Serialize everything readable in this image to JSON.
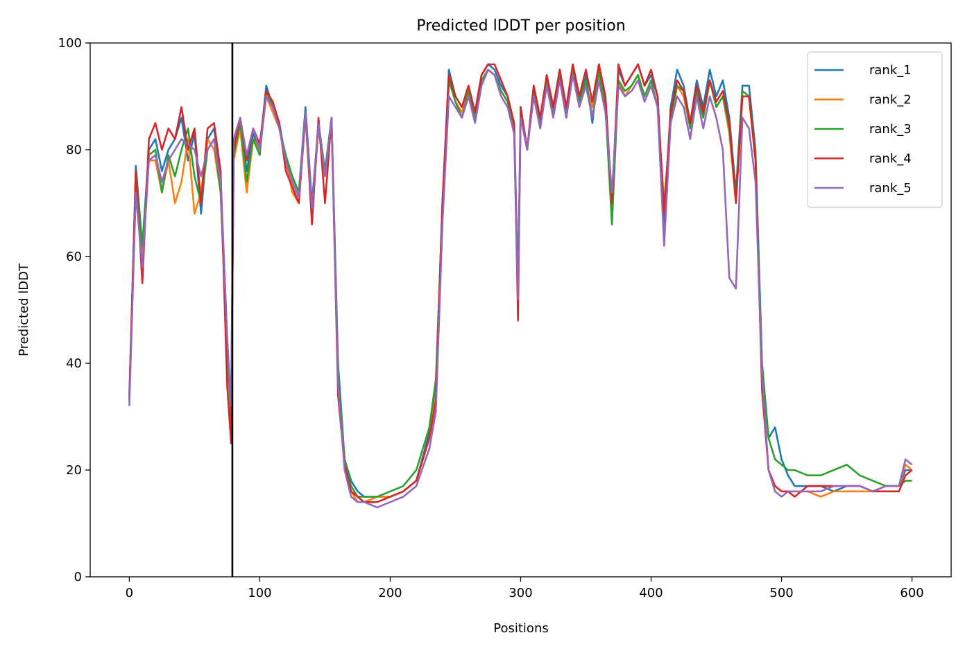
{
  "chart_data": {
    "type": "line",
    "title": "Predicted lDDT per position",
    "xlabel": "Positions",
    "ylabel": "Predicted lDDT",
    "xlim": [
      -30,
      630
    ],
    "ylim": [
      0,
      100
    ],
    "xticks": [
      0,
      100,
      200,
      300,
      400,
      500,
      600
    ],
    "yticks": [
      0,
      20,
      40,
      60,
      80,
      100
    ],
    "grid": false,
    "legend_position": "top-right",
    "vline_x": 79,
    "x": [
      0,
      5,
      10,
      15,
      20,
      25,
      30,
      35,
      40,
      45,
      50,
      55,
      60,
      65,
      70,
      75,
      78,
      80,
      85,
      90,
      95,
      100,
      105,
      110,
      115,
      120,
      125,
      130,
      135,
      140,
      145,
      150,
      155,
      160,
      165,
      170,
      175,
      180,
      190,
      200,
      210,
      220,
      230,
      235,
      240,
      245,
      250,
      255,
      260,
      265,
      270,
      275,
      280,
      285,
      290,
      295,
      298,
      300,
      305,
      310,
      315,
      320,
      325,
      330,
      335,
      340,
      345,
      350,
      355,
      360,
      365,
      370,
      375,
      380,
      385,
      390,
      395,
      400,
      405,
      410,
      415,
      420,
      425,
      430,
      435,
      440,
      445,
      450,
      455,
      460,
      465,
      470,
      475,
      480,
      485,
      490,
      495,
      500,
      505,
      510,
      520,
      530,
      540,
      550,
      560,
      570,
      580,
      590,
      595,
      600
    ],
    "series": [
      {
        "name": "rank_1",
        "color": "#1f77b4",
        "values": [
          33,
          77,
          62,
          80,
          82,
          76,
          80,
          82,
          86,
          78,
          83,
          68,
          82,
          84,
          75,
          45,
          30,
          80,
          86,
          76,
          83,
          80,
          92,
          88,
          85,
          78,
          75,
          72,
          88,
          70,
          85,
          76,
          86,
          40,
          22,
          18,
          16,
          15,
          15,
          15,
          16,
          18,
          27,
          35,
          70,
          95,
          90,
          88,
          92,
          87,
          94,
          96,
          95,
          92,
          90,
          85,
          55,
          88,
          80,
          92,
          85,
          94,
          88,
          95,
          87,
          96,
          90,
          94,
          85,
          96,
          90,
          70,
          95,
          92,
          94,
          96,
          92,
          94,
          90,
          66,
          88,
          95,
          92,
          85,
          93,
          88,
          95,
          90,
          93,
          86,
          72,
          92,
          92,
          80,
          40,
          26,
          28,
          22,
          19,
          17,
          17,
          17,
          16,
          17,
          17,
          16,
          17,
          17,
          20,
          20
        ]
      },
      {
        "name": "rank_2",
        "color": "#ff7f0e",
        "values": [
          33,
          75,
          60,
          78,
          78,
          72,
          78,
          70,
          74,
          82,
          68,
          72,
          82,
          80,
          72,
          42,
          30,
          78,
          84,
          72,
          82,
          80,
          90,
          87,
          84,
          78,
          72,
          70,
          86,
          68,
          84,
          76,
          85,
          37,
          22,
          16,
          14,
          14,
          15,
          15,
          16,
          18,
          26,
          34,
          68,
          93,
          89,
          87,
          91,
          86,
          93,
          95,
          94,
          91,
          89,
          84,
          54,
          87,
          80,
          90,
          84,
          93,
          87,
          94,
          86,
          95,
          89,
          92,
          88,
          94,
          88,
          68,
          93,
          90,
          92,
          94,
          90,
          93,
          88,
          70,
          85,
          92,
          90,
          84,
          91,
          86,
          93,
          88,
          90,
          83,
          70,
          90,
          90,
          78,
          36,
          20,
          17,
          16,
          16,
          16,
          16,
          15,
          16,
          16,
          16,
          16,
          17,
          17,
          21,
          20
        ]
      },
      {
        "name": "rank_3",
        "color": "#2ca02c",
        "values": [
          33,
          76,
          62,
          79,
          80,
          72,
          79,
          75,
          80,
          84,
          75,
          70,
          80,
          82,
          72,
          43,
          30,
          79,
          85,
          74,
          82,
          79,
          91,
          88,
          84,
          79,
          75,
          72,
          87,
          69,
          85,
          76,
          86,
          38,
          22,
          17,
          15,
          15,
          15,
          16,
          17,
          20,
          28,
          37,
          69,
          93,
          89,
          86,
          91,
          86,
          93,
          95,
          94,
          91,
          89,
          84,
          54,
          87,
          80,
          91,
          84,
          93,
          87,
          94,
          86,
          95,
          89,
          93,
          86,
          95,
          88,
          66,
          93,
          91,
          92,
          94,
          90,
          93,
          88,
          69,
          86,
          92,
          91,
          84,
          91,
          86,
          93,
          88,
          90,
          84,
          71,
          91,
          90,
          79,
          40,
          26,
          22,
          21,
          20,
          20,
          19,
          19,
          20,
          21,
          19,
          18,
          17,
          17,
          18,
          18
        ]
      },
      {
        "name": "rank_4",
        "color": "#d62728",
        "values": [
          34,
          76,
          55,
          82,
          85,
          80,
          84,
          82,
          88,
          80,
          84,
          70,
          84,
          85,
          76,
          36,
          25,
          80,
          86,
          78,
          84,
          81,
          91,
          89,
          85,
          76,
          73,
          70,
          87,
          66,
          86,
          70,
          86,
          34,
          21,
          16,
          15,
          14,
          14,
          15,
          16,
          18,
          26,
          33,
          70,
          94,
          90,
          88,
          92,
          87,
          94,
          96,
          96,
          93,
          90,
          85,
          48,
          88,
          80,
          92,
          86,
          94,
          88,
          95,
          88,
          96,
          90,
          95,
          89,
          96,
          90,
          70,
          96,
          92,
          94,
          96,
          92,
          95,
          90,
          68,
          87,
          93,
          91,
          85,
          92,
          87,
          93,
          89,
          91,
          85,
          70,
          90,
          90,
          78,
          35,
          20,
          17,
          16,
          16,
          15,
          17,
          17,
          17,
          17,
          17,
          16,
          16,
          16,
          19,
          20
        ]
      },
      {
        "name": "rank_5",
        "color": "#9467bd",
        "values": [
          32,
          72,
          58,
          78,
          79,
          74,
          78,
          80,
          82,
          81,
          80,
          75,
          80,
          82,
          74,
          45,
          32,
          82,
          86,
          79,
          84,
          80,
          90,
          88,
          84,
          78,
          74,
          71,
          87,
          69,
          85,
          75,
          86,
          36,
          20,
          15,
          14,
          14,
          13,
          14,
          15,
          17,
          24,
          31,
          66,
          90,
          88,
          86,
          90,
          85,
          92,
          95,
          94,
          90,
          88,
          83,
          52,
          86,
          80,
          90,
          84,
          92,
          86,
          93,
          86,
          94,
          88,
          92,
          86,
          93,
          87,
          72,
          92,
          90,
          91,
          93,
          89,
          92,
          88,
          62,
          85,
          90,
          88,
          82,
          90,
          84,
          90,
          86,
          80,
          56,
          54,
          86,
          84,
          74,
          38,
          20,
          16,
          15,
          16,
          16,
          16,
          16,
          17,
          17,
          17,
          16,
          17,
          17,
          22,
          21
        ]
      }
    ]
  }
}
